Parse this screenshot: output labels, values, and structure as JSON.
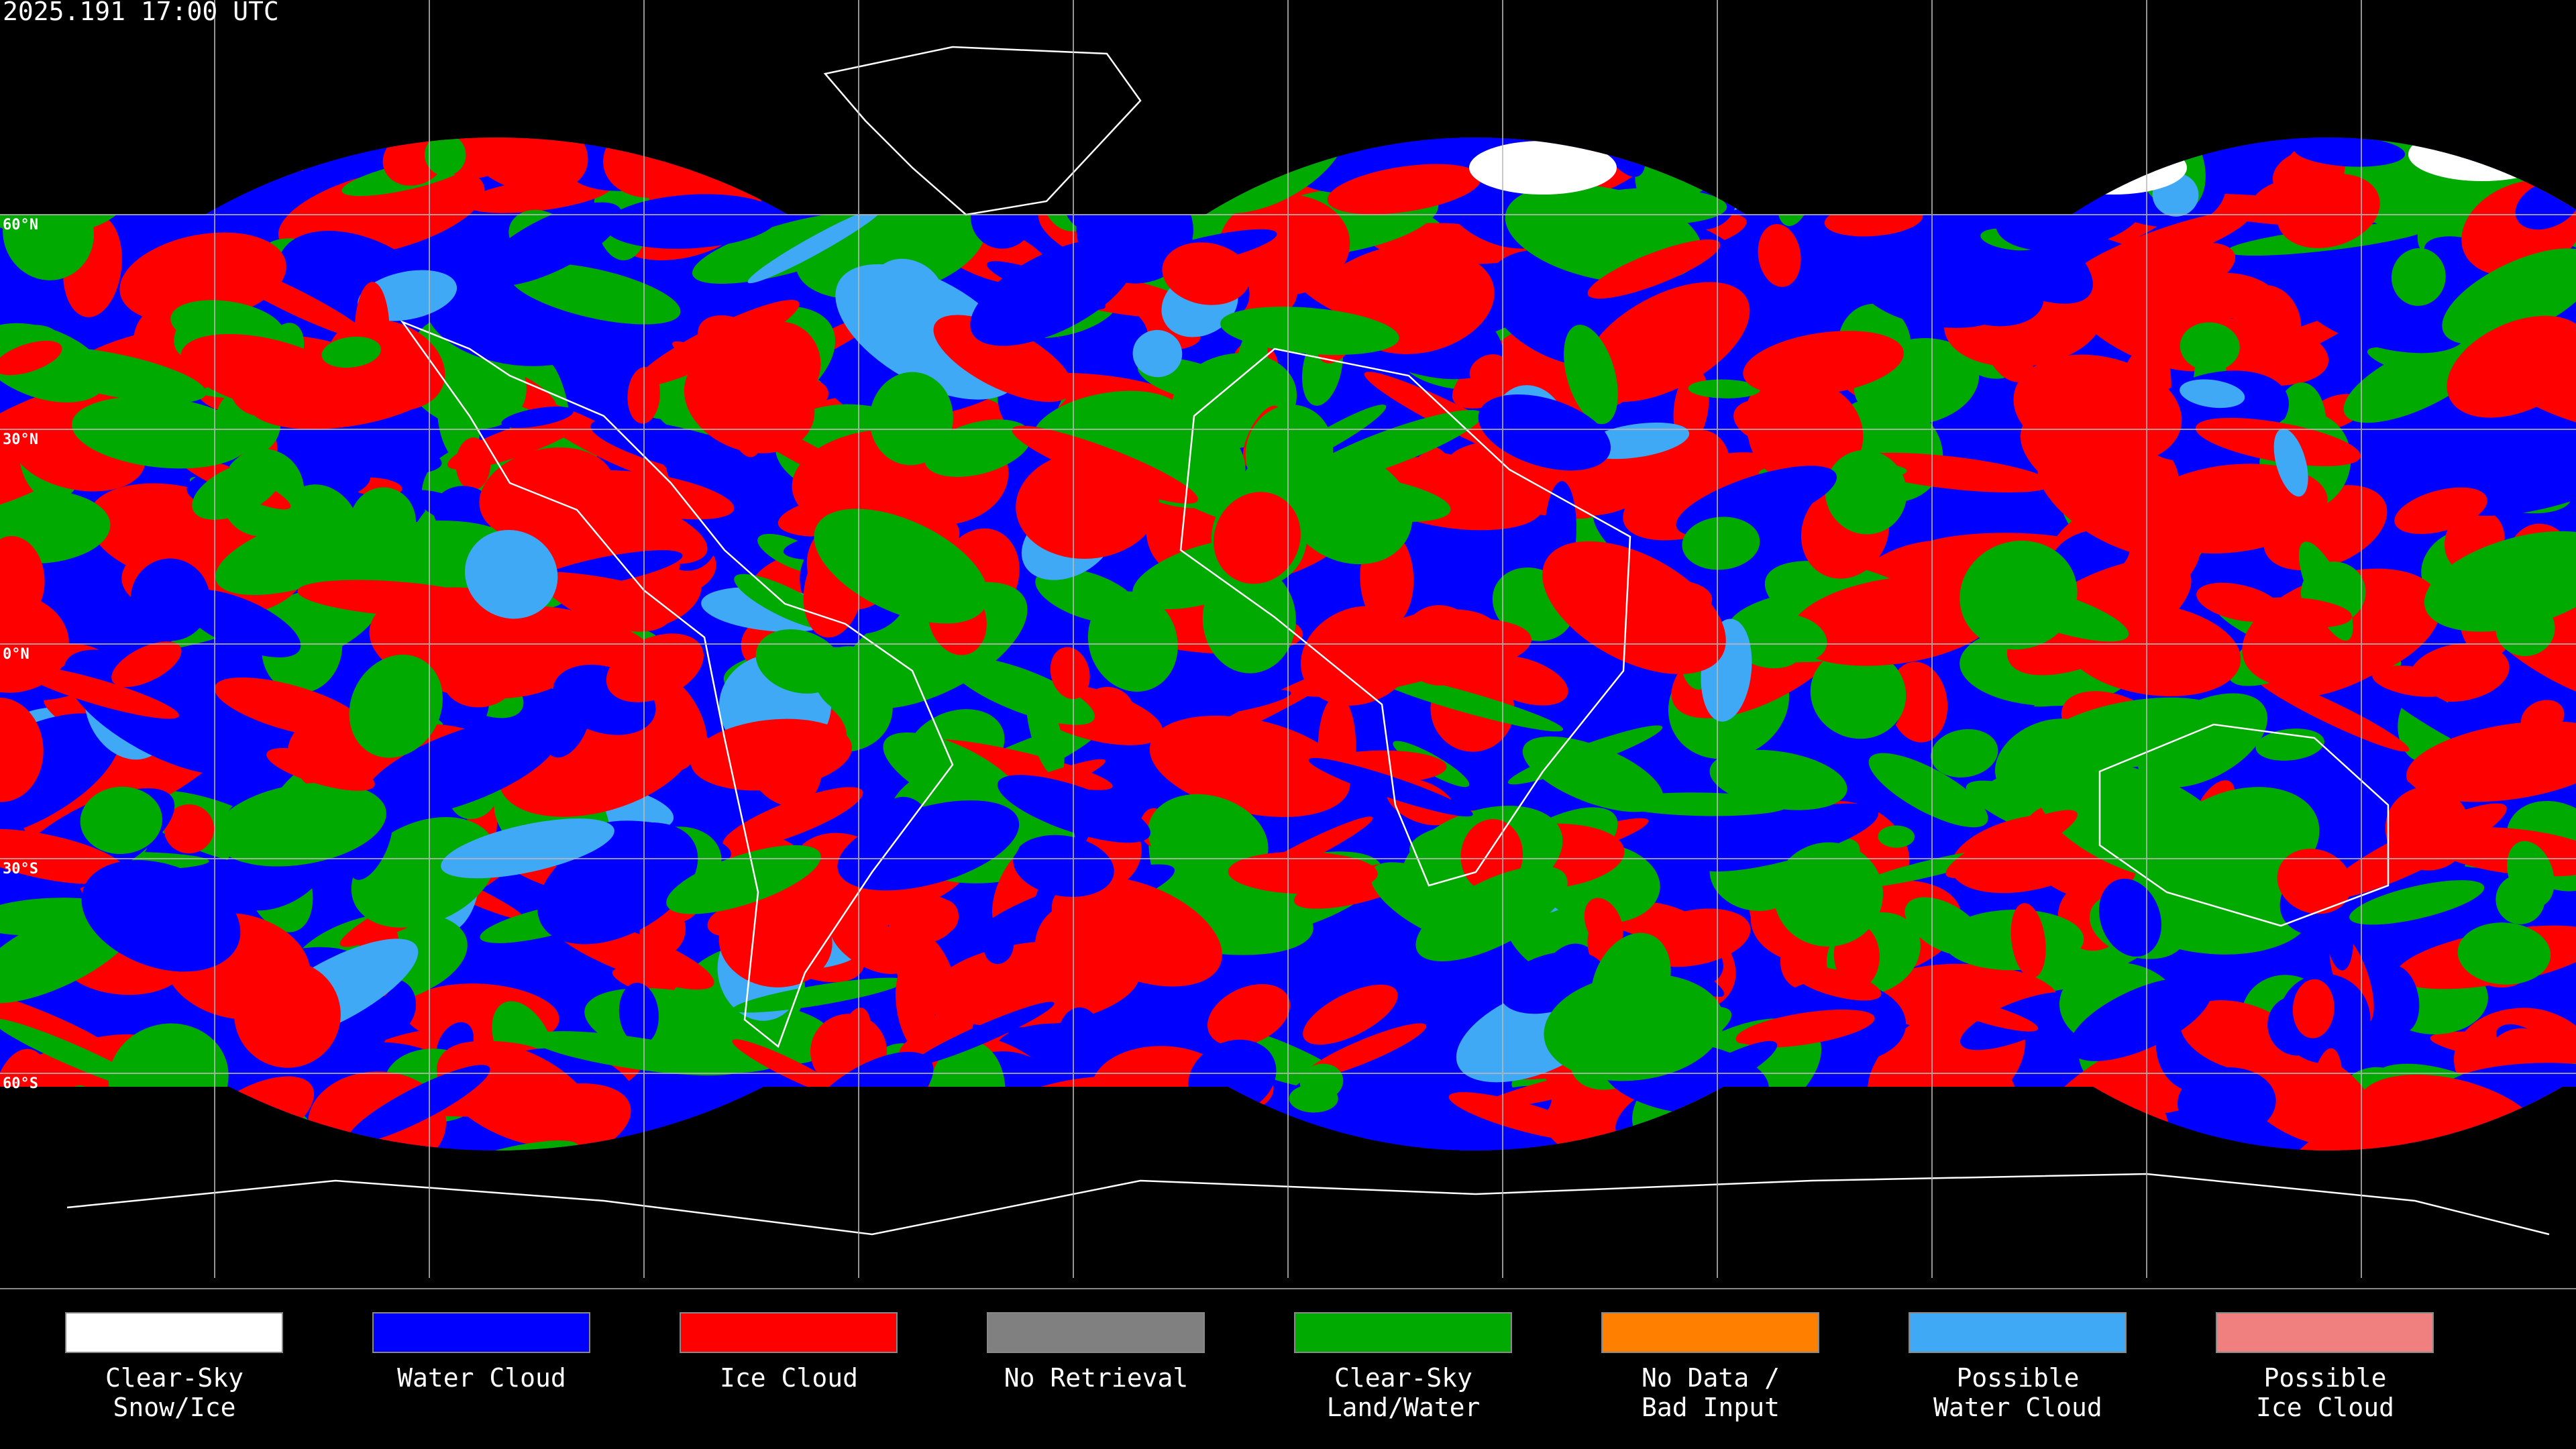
{
  "header": {
    "title": "2025.191 17:00 UTC"
  },
  "latitude_labels": [
    "60°N",
    "30°N",
    "0°N",
    "30°S",
    "60°S"
  ],
  "legend": [
    {
      "label": [
        "Clear-Sky",
        "Snow/Ice"
      ],
      "color": "#ffffff"
    },
    {
      "label": [
        "Water Cloud"
      ],
      "color": "#0000ff"
    },
    {
      "label": [
        "Ice Cloud"
      ],
      "color": "#ff0000"
    },
    {
      "label": [
        "No Retrieval"
      ],
      "color": "#808080"
    },
    {
      "label": [
        "Clear-Sky",
        "Land/Water"
      ],
      "color": "#00aa00"
    },
    {
      "label": [
        "No Data /",
        "Bad Input"
      ],
      "color": "#ff8000"
    },
    {
      "label": [
        "Possible",
        "Water Cloud"
      ],
      "color": "#3fa9f5"
    },
    {
      "label": [
        "Possible",
        "Ice Cloud"
      ],
      "color": "#f08080"
    }
  ]
}
